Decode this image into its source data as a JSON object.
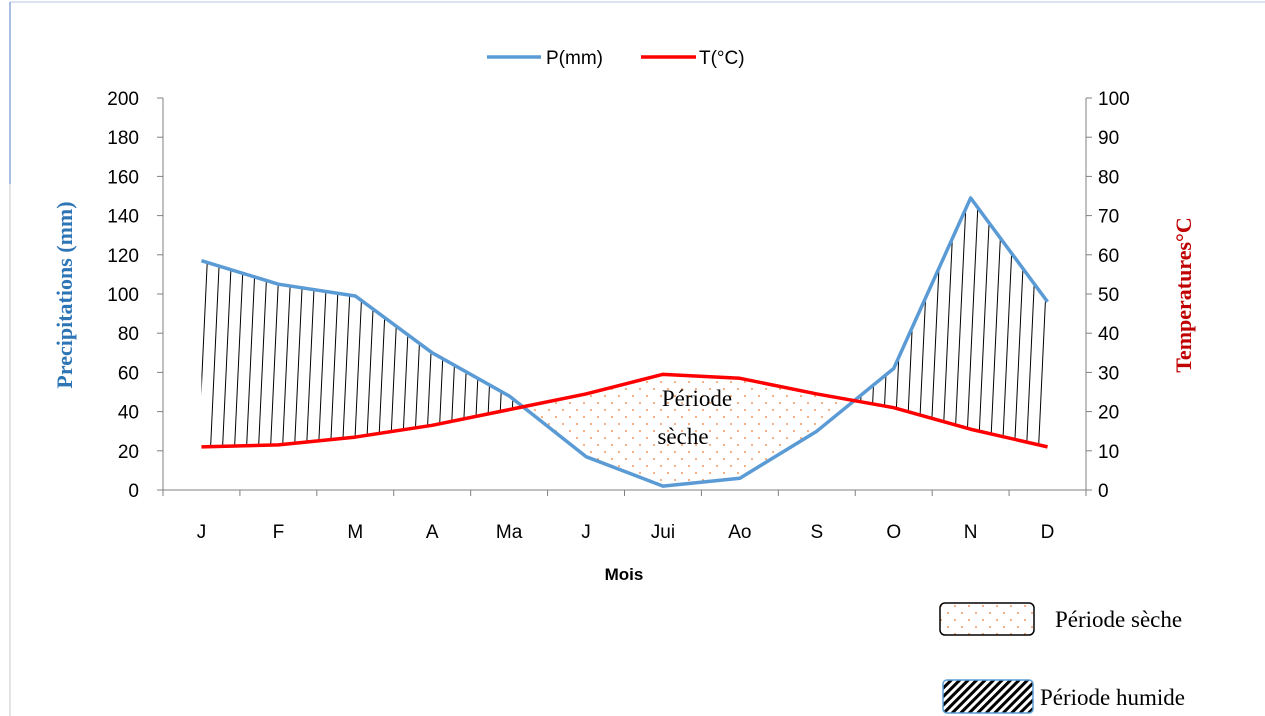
{
  "chart_data": {
    "type": "line",
    "title": "",
    "xlabel": "Mois",
    "ylabel_left": "Precipitations (mm)",
    "ylabel_right": "Temperatures°C",
    "categories": [
      "J",
      "F",
      "M",
      "A",
      "Ma",
      "J",
      "Jui",
      "Ao",
      "S",
      "O",
      "N",
      "D"
    ],
    "y_left_lim": [
      0,
      200
    ],
    "y_left_ticks": [
      "0",
      "20",
      "40",
      "60",
      "80",
      "100",
      "120",
      "140",
      "160",
      "180",
      "200"
    ],
    "y_right_lim": [
      0,
      100
    ],
    "y_right_ticks": [
      "0",
      "10",
      "20",
      "30",
      "40",
      "50",
      "60",
      "70",
      "80",
      "90",
      "100"
    ],
    "grid": false,
    "legend_position": "top",
    "series": [
      {
        "name": "P(mm)",
        "axis": "left",
        "color": "#5b9bd5",
        "values": [
          117,
          105,
          99,
          70,
          48,
          17,
          2,
          6,
          30,
          62,
          149,
          96
        ]
      },
      {
        "name": "T(°C)",
        "axis": "right",
        "color": "#ff0000",
        "values": [
          11,
          11.5,
          13.5,
          16.5,
          20.5,
          24.5,
          29.5,
          28.5,
          24.5,
          21,
          15.5,
          11
        ]
      }
    ],
    "annotations": {
      "dry_label_line1": "Période",
      "dry_label_line2": "sèche",
      "dry_color": "#ed7d31"
    },
    "period_legend": {
      "dry": "Période sèche",
      "wet": "Période humide"
    }
  }
}
